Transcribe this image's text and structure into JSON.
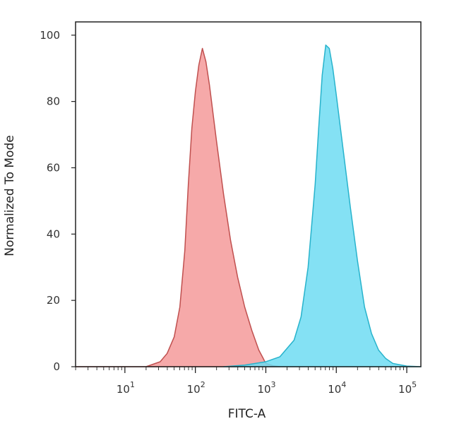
{
  "chart_data": {
    "type": "area",
    "title": "",
    "xlabel": "FITC-A",
    "ylabel": "Normalized To Mode",
    "xscale": "log",
    "xlim_log10": [
      0.3,
      5.2
    ],
    "ylim": [
      0,
      104
    ],
    "x_ticks": [
      {
        "base": "10",
        "exp": "1",
        "log10": 1
      },
      {
        "base": "10",
        "exp": "2",
        "log10": 2
      },
      {
        "base": "10",
        "exp": "3",
        "log10": 3
      },
      {
        "base": "10",
        "exp": "4",
        "log10": 4
      },
      {
        "base": "10",
        "exp": "5",
        "log10": 5
      }
    ],
    "y_ticks": [
      "0",
      "20",
      "40",
      "60",
      "80",
      "100"
    ],
    "grid": false,
    "legend": "none",
    "series": [
      {
        "fill": "#f49a9a",
        "stroke": "#c0504f",
        "points": [
          [
            0.3,
            0
          ],
          [
            1.3,
            0
          ],
          [
            1.5,
            1.5
          ],
          [
            1.6,
            4
          ],
          [
            1.7,
            9
          ],
          [
            1.78,
            18
          ],
          [
            1.85,
            35
          ],
          [
            1.9,
            55
          ],
          [
            1.95,
            72
          ],
          [
            2.0,
            83
          ],
          [
            2.05,
            91
          ],
          [
            2.1,
            96
          ],
          [
            2.15,
            92
          ],
          [
            2.2,
            85
          ],
          [
            2.3,
            68
          ],
          [
            2.4,
            52
          ],
          [
            2.5,
            38
          ],
          [
            2.6,
            27
          ],
          [
            2.7,
            18
          ],
          [
            2.8,
            11
          ],
          [
            2.9,
            5
          ],
          [
            2.95,
            3
          ],
          [
            3.0,
            1
          ],
          [
            3.1,
            0.3
          ],
          [
            3.2,
            0
          ]
        ]
      },
      {
        "fill": "#6fdcf2",
        "stroke": "#27b3cc",
        "points": [
          [
            2.4,
            0
          ],
          [
            2.7,
            0.5
          ],
          [
            3.0,
            1.5
          ],
          [
            3.2,
            3
          ],
          [
            3.4,
            8
          ],
          [
            3.5,
            15
          ],
          [
            3.6,
            30
          ],
          [
            3.7,
            55
          ],
          [
            3.75,
            72
          ],
          [
            3.8,
            88
          ],
          [
            3.85,
            97
          ],
          [
            3.9,
            96
          ],
          [
            3.95,
            90
          ],
          [
            4.0,
            82
          ],
          [
            4.1,
            65
          ],
          [
            4.2,
            48
          ],
          [
            4.3,
            32
          ],
          [
            4.4,
            18
          ],
          [
            4.5,
            10
          ],
          [
            4.6,
            5
          ],
          [
            4.7,
            2.5
          ],
          [
            4.8,
            1
          ],
          [
            5.0,
            0.2
          ],
          [
            5.2,
            0
          ]
        ]
      }
    ]
  }
}
